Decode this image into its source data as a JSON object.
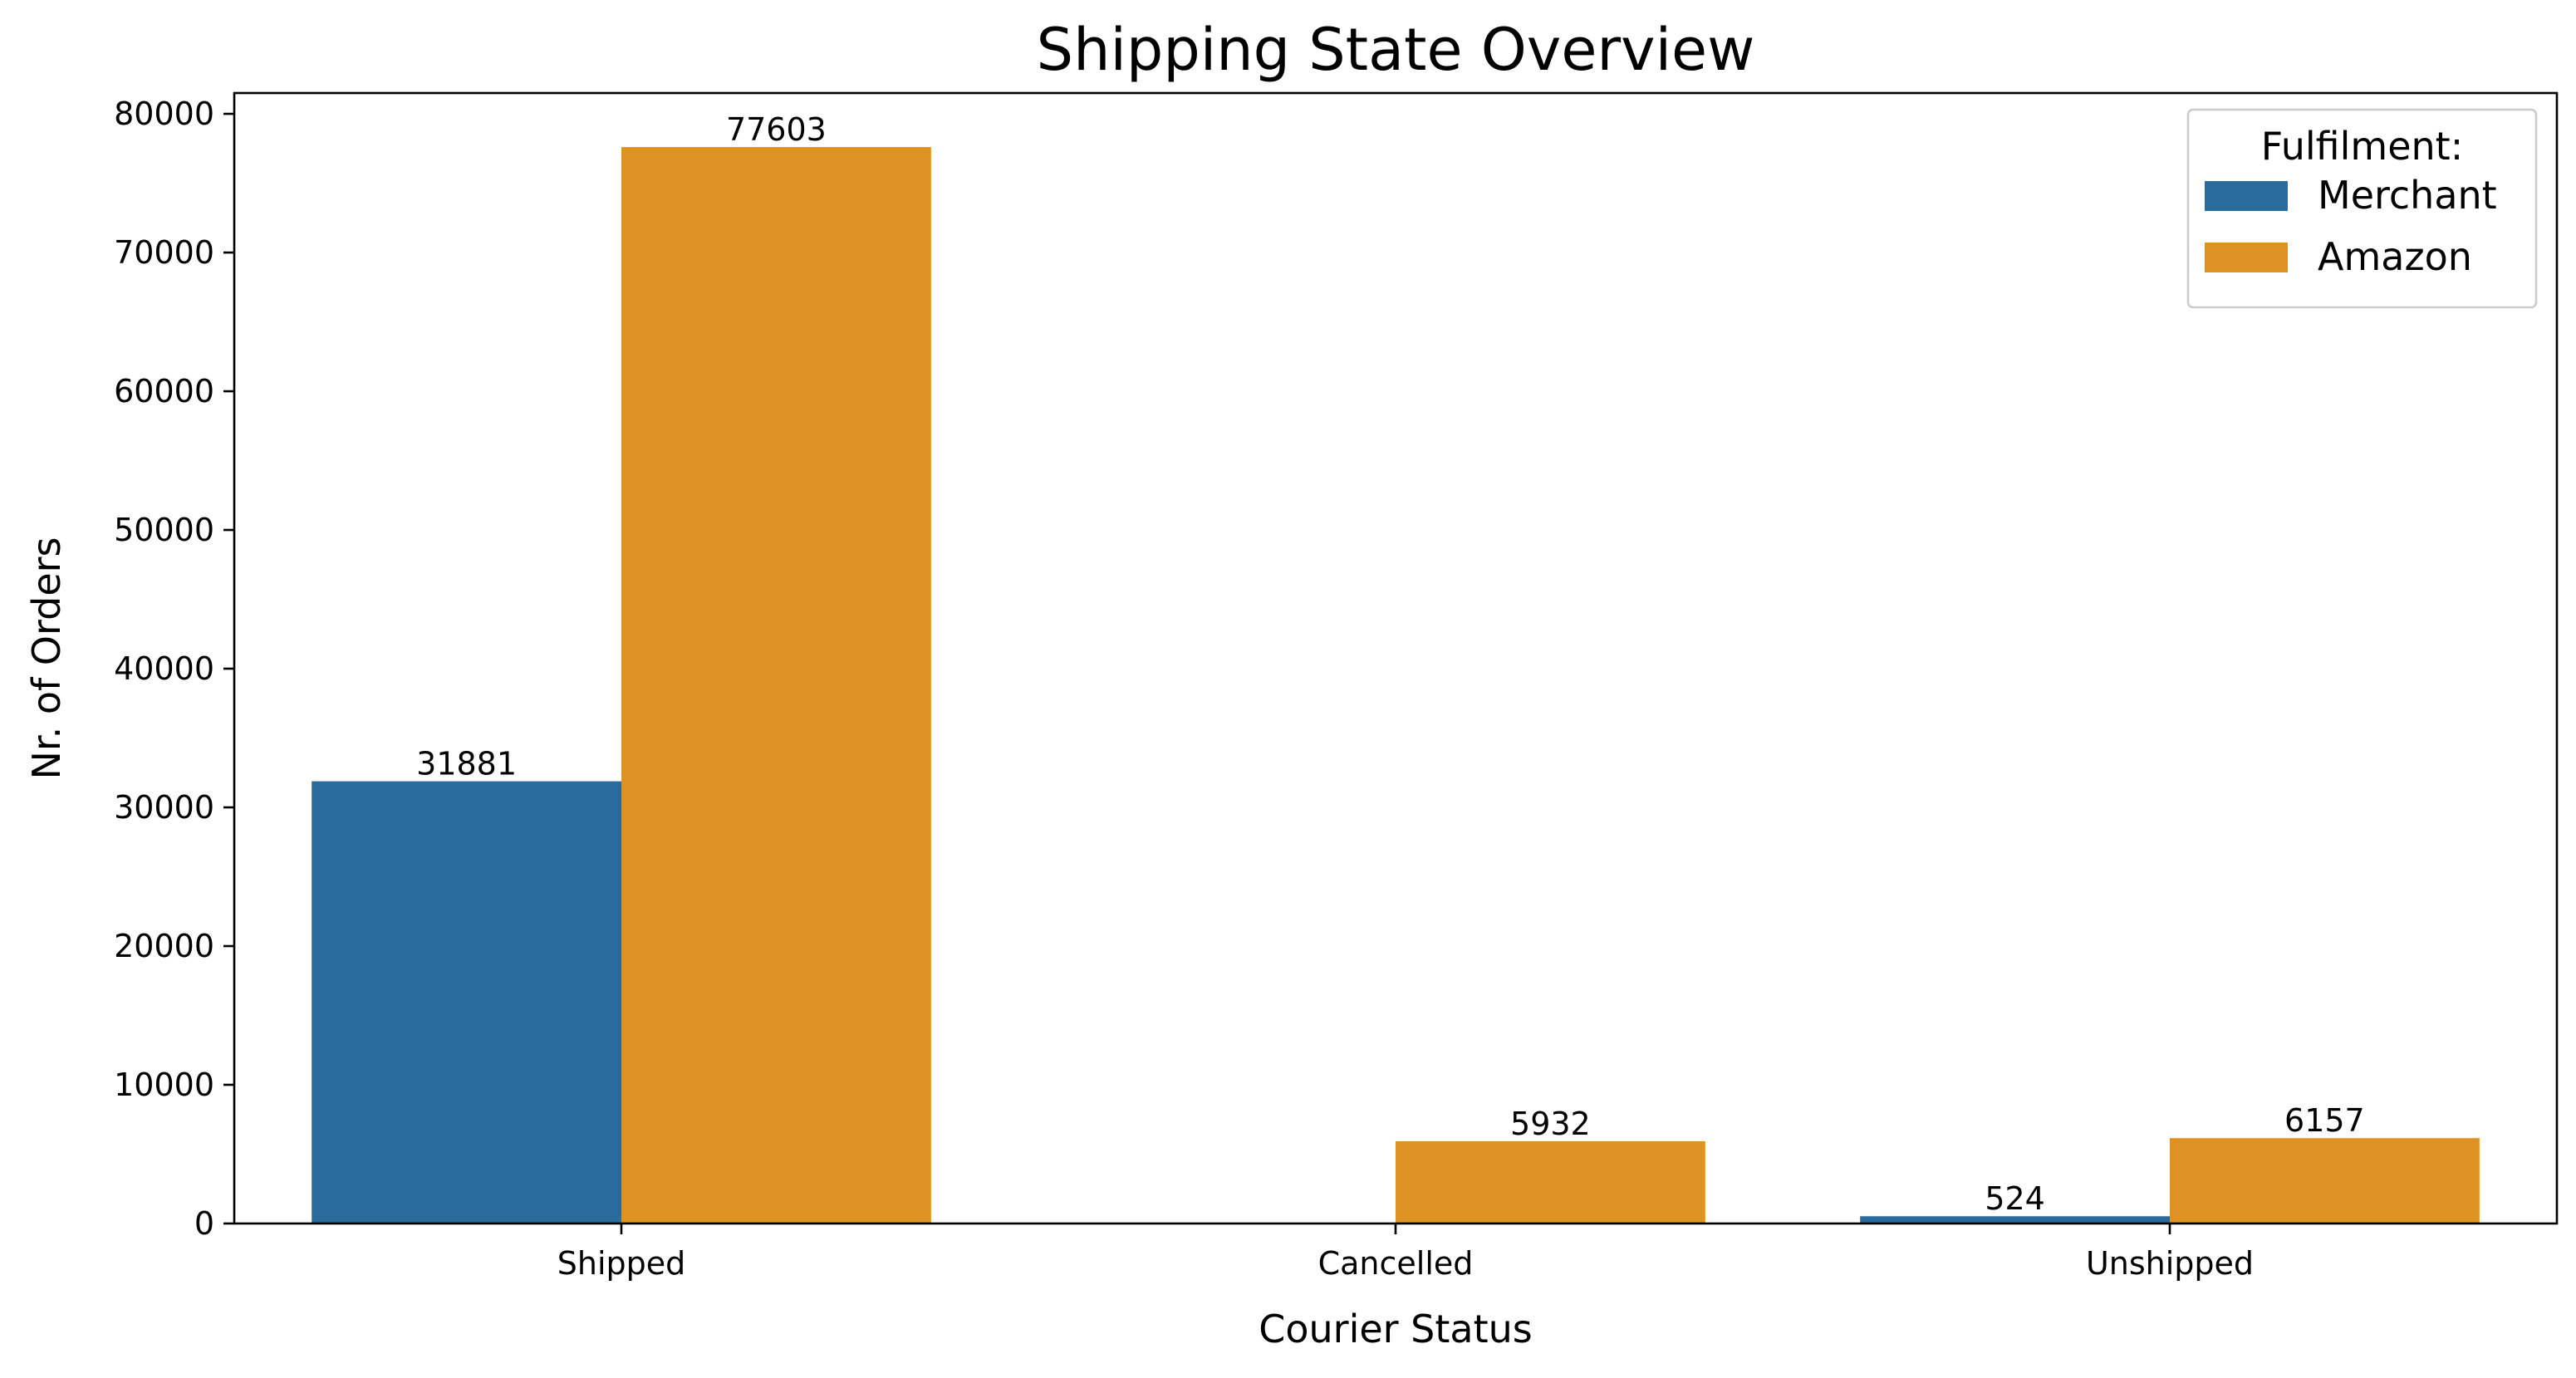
{
  "chart_data": {
    "type": "bar",
    "title": "Shipping State Overview",
    "xlabel": "Courier Status",
    "ylabel": "Nr. of Orders",
    "categories": [
      "Shipped",
      "Cancelled",
      "Unshipped"
    ],
    "series": [
      {
        "name": "Merchant",
        "color": "#2a6b9e",
        "values": [
          31881,
          null,
          524
        ],
        "labels": [
          "31881",
          "",
          "524"
        ]
      },
      {
        "name": "Amazon",
        "color": "#de9222",
        "values": [
          77603,
          5932,
          6157
        ],
        "labels": [
          "77603",
          "5932",
          "6157"
        ]
      }
    ],
    "ylim": [
      0,
      81500
    ],
    "yticks": [
      0,
      10000,
      20000,
      30000,
      40000,
      50000,
      60000,
      70000,
      80000
    ],
    "ytick_labels": [
      "0",
      "10000",
      "20000",
      "30000",
      "40000",
      "50000",
      "60000",
      "70000",
      "80000"
    ],
    "grid": false,
    "legend": {
      "title": "Fulfilment:",
      "placement": "top-right",
      "entries": [
        "Merchant",
        "Amazon"
      ]
    }
  }
}
